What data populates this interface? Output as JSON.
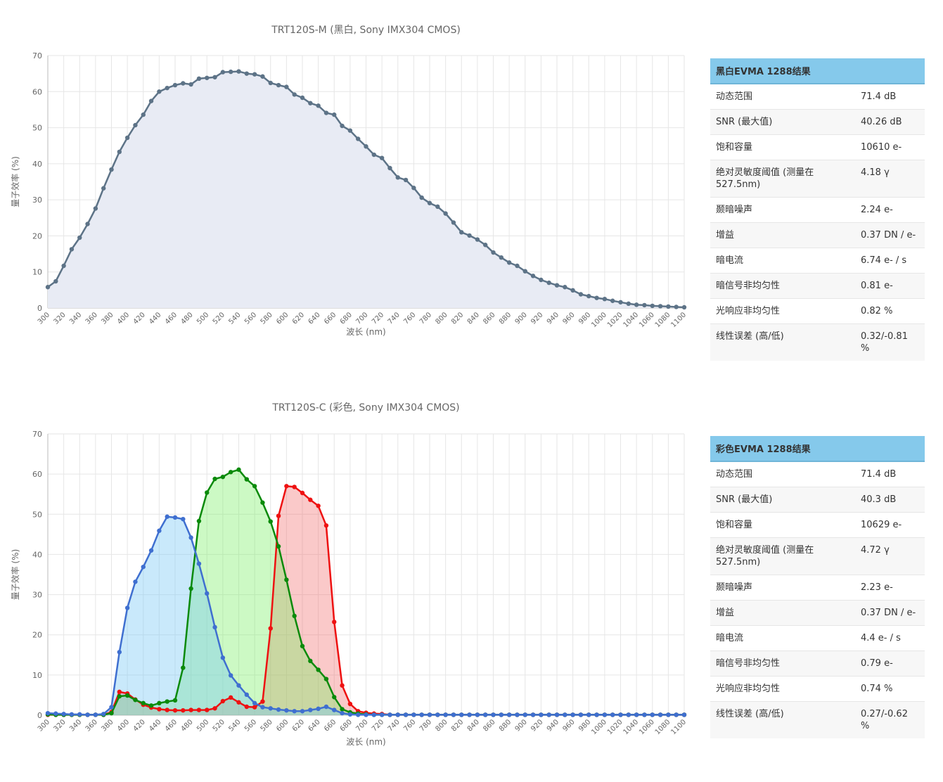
{
  "chart_data": [
    {
      "type": "line",
      "title": "TRT120S-M (黑白, Sony IMX304 CMOS)",
      "x_label": "波长 (nm)",
      "y_label": "量子效率 (%)",
      "x": [
        300,
        310,
        320,
        330,
        340,
        350,
        360,
        370,
        380,
        390,
        400,
        410,
        420,
        430,
        440,
        450,
        460,
        470,
        480,
        490,
        500,
        510,
        520,
        530,
        540,
        550,
        560,
        570,
        580,
        590,
        600,
        610,
        620,
        630,
        640,
        650,
        660,
        670,
        680,
        690,
        700,
        710,
        720,
        730,
        740,
        750,
        760,
        770,
        780,
        790,
        800,
        810,
        820,
        830,
        840,
        850,
        860,
        870,
        880,
        890,
        900,
        910,
        920,
        930,
        940,
        950,
        960,
        970,
        980,
        990,
        1000,
        1010,
        1020,
        1030,
        1040,
        1050,
        1060,
        1070,
        1080,
        1090,
        1100
      ],
      "series": [
        {
          "color": "#5d7387",
          "fill_color": "#e8ebf4",
          "values": [
            5.8,
            7.4,
            11.7,
            16.3,
            19.5,
            23.3,
            27.6,
            33.2,
            38.4,
            43.3,
            47.2,
            50.7,
            53.6,
            57.4,
            60,
            61,
            61.8,
            62.3,
            62,
            63.6,
            63.8,
            64,
            65.4,
            65.5,
            65.6,
            65,
            64.8,
            64.2,
            62.4,
            61.8,
            61.3,
            59.2,
            58.3,
            56.8,
            56.1,
            54.1,
            53.6,
            50.5,
            49.2,
            46.9,
            44.8,
            42.5,
            41.6,
            38.8,
            36.2,
            35.5,
            33.3,
            30.6,
            29.1,
            28.1,
            26.2,
            23.7,
            21,
            20.1,
            19,
            17.5,
            15.4,
            14,
            12.6,
            11.7,
            10.2,
            8.9,
            7.8,
            7,
            6.3,
            5.8,
            4.9,
            3.8,
            3.3,
            2.8,
            2.5,
            2,
            1.6,
            1.2,
            0.9,
            0.8,
            0.6,
            0.5,
            0.4,
            0.3,
            0.2
          ]
        }
      ],
      "xlim": [
        300,
        1100
      ],
      "ylim": [
        0,
        70
      ],
      "xticks": [
        300,
        320,
        340,
        360,
        380,
        400,
        420,
        440,
        460,
        480,
        500,
        520,
        540,
        560,
        580,
        600,
        620,
        640,
        660,
        680,
        700,
        720,
        740,
        760,
        780,
        800,
        820,
        840,
        860,
        880,
        900,
        920,
        940,
        960,
        980,
        1000,
        1020,
        1040,
        1060,
        1080,
        1100
      ],
      "yticks": [
        0,
        10,
        20,
        30,
        40,
        50,
        60,
        70
      ],
      "grid": true
    },
    {
      "type": "line",
      "title": "TRT120S-C (彩色, Sony IMX304 CMOS)",
      "x_label": "波长 (nm)",
      "y_label": "量子效率 (%)",
      "x": [
        300,
        310,
        320,
        330,
        340,
        350,
        360,
        370,
        380,
        390,
        400,
        410,
        420,
        430,
        440,
        450,
        460,
        470,
        480,
        490,
        500,
        510,
        520,
        530,
        540,
        550,
        560,
        570,
        580,
        590,
        600,
        610,
        620,
        630,
        640,
        650,
        660,
        670,
        680,
        690,
        700,
        710,
        720,
        730,
        740,
        750,
        760,
        770,
        780,
        790,
        800,
        810,
        820,
        830,
        840,
        850,
        860,
        870,
        880,
        890,
        900,
        910,
        920,
        930,
        940,
        950,
        960,
        970,
        980,
        990,
        1000,
        1010,
        1020,
        1030,
        1040,
        1050,
        1060,
        1070,
        1080,
        1090,
        1100
      ],
      "series": [
        {
          "color": "#ee1111",
          "fill_color": "rgba(240,100,100,0.35)",
          "values": [
            0.1,
            0.1,
            0.1,
            0.1,
            0.1,
            0.1,
            0.1,
            0.1,
            0.8,
            5.8,
            5.4,
            3.9,
            2.6,
            1.9,
            1.5,
            1.3,
            1.2,
            1.2,
            1.3,
            1.3,
            1.3,
            1.7,
            3.5,
            4.4,
            3.2,
            2.1,
            2,
            3.4,
            21.6,
            49.6,
            57,
            56.8,
            55.3,
            53.6,
            52.1,
            47.2,
            23.2,
            7.4,
            2.8,
            1,
            0.6,
            0.4,
            0.3,
            0.1,
            0.1,
            0.1,
            0.1,
            0.1,
            0.1,
            0.1,
            0.1,
            0.1,
            0.1,
            0.1,
            0.1,
            0.1,
            0.1,
            0.1,
            0.1,
            0.1,
            0.1,
            0.1,
            0.1,
            0.1,
            0.1,
            0.1,
            0.1,
            0.1,
            0.1,
            0.1,
            0.1,
            0.1,
            0.1,
            0.1,
            0.1,
            0.1,
            0.1,
            0.1,
            0.1,
            0.1,
            0.1
          ]
        },
        {
          "color": "#0a8a0a",
          "fill_color": "rgba(120,240,100,0.38)",
          "values": [
            0.2,
            0.1,
            0.1,
            0.1,
            0.1,
            0.1,
            0.1,
            0.1,
            0.5,
            4.7,
            4.9,
            3.8,
            3,
            2.4,
            3,
            3.4,
            3.7,
            11.8,
            31.5,
            48.3,
            55.4,
            58.8,
            59.3,
            60.5,
            61.1,
            58.7,
            57,
            52.9,
            48.2,
            42,
            33.7,
            24.7,
            17.2,
            13.5,
            11.3,
            9,
            4.5,
            1.5,
            0.7,
            0.4,
            0.2,
            0.1,
            0.1,
            0.1,
            0.1,
            0.1,
            0.1,
            0.1,
            0.1,
            0.1,
            0.1,
            0.1,
            0.1,
            0.1,
            0.1,
            0.1,
            0.1,
            0.1,
            0.1,
            0.1,
            0.1,
            0.1,
            0.1,
            0.1,
            0.1,
            0.1,
            0.1,
            0.1,
            0.1,
            0.1,
            0.1,
            0.1,
            0.1,
            0.1,
            0.1,
            0.1,
            0.1,
            0.1,
            0.1,
            0.1,
            0.1
          ]
        },
        {
          "color": "#3f6fd0",
          "fill_color": "rgba(120,200,245,0.4)",
          "values": [
            0.5,
            0.4,
            0.3,
            0.2,
            0.2,
            0.1,
            0.1,
            0.3,
            2,
            15.7,
            26.7,
            33.2,
            36.9,
            41,
            45.9,
            49.4,
            49.2,
            48.8,
            44.2,
            37.7,
            30.3,
            21.9,
            14.3,
            9.9,
            7.4,
            5.1,
            3,
            2,
            1.7,
            1.4,
            1.2,
            1,
            1,
            1.3,
            1.6,
            2.1,
            1.3,
            0.5,
            0.2,
            0.1,
            0.1,
            0.1,
            0.1,
            0.1,
            0.1,
            0.1,
            0.1,
            0.1,
            0.1,
            0.1,
            0.1,
            0.1,
            0.1,
            0.1,
            0.1,
            0.1,
            0.1,
            0.1,
            0.1,
            0.1,
            0.1,
            0.1,
            0.1,
            0.1,
            0.1,
            0.1,
            0.1,
            0.1,
            0.1,
            0.1,
            0.1,
            0.1,
            0.1,
            0.1,
            0.1,
            0.1,
            0.1,
            0.1,
            0.1,
            0.1,
            0.1
          ]
        }
      ],
      "xlim": [
        300,
        1100
      ],
      "ylim": [
        0,
        70
      ],
      "xticks": [
        300,
        320,
        340,
        360,
        380,
        400,
        420,
        440,
        460,
        480,
        500,
        520,
        540,
        560,
        580,
        600,
        620,
        640,
        660,
        680,
        700,
        720,
        740,
        760,
        780,
        800,
        820,
        840,
        860,
        880,
        900,
        920,
        940,
        960,
        980,
        1000,
        1020,
        1040,
        1060,
        1080,
        1100
      ],
      "yticks": [
        0,
        10,
        20,
        30,
        40,
        50,
        60,
        70
      ],
      "grid": true
    }
  ],
  "tables": [
    {
      "title": "黑白EVMA 1288结果",
      "rows": [
        [
          "动态范围",
          "71.4 dB"
        ],
        [
          "SNR (最大值)",
          "40.26 dB"
        ],
        [
          "饱和容量",
          "10610 e-"
        ],
        [
          "绝对灵敏度阈值 (测量在527.5nm)",
          "4.18 γ"
        ],
        [
          "颞暗噪声",
          "2.24 e-"
        ],
        [
          "增益",
          "0.37 DN / e-"
        ],
        [
          "暗电流",
          "6.74 e- / s"
        ],
        [
          "暗信号非均匀性",
          "0.81 e-"
        ],
        [
          "光响应非均匀性",
          "0.82 %"
        ],
        [
          "线性误差 (高/低)",
          "0.32/-0.81 %"
        ]
      ]
    },
    {
      "title": "彩色EVMA 1288结果",
      "rows": [
        [
          "动态范围",
          "71.4 dB"
        ],
        [
          "SNR (最大值)",
          "40.3 dB"
        ],
        [
          "饱和容量",
          "10629 e-"
        ],
        [
          "绝对灵敏度阈值 (测量在527.5nm)",
          "4.72 γ"
        ],
        [
          "颞暗噪声",
          "2.23 e-"
        ],
        [
          "增益",
          "0.37 DN / e-"
        ],
        [
          "暗电流",
          "4.4 e- / s"
        ],
        [
          "暗信号非均匀性",
          "0.79 e-"
        ],
        [
          "光响应非均匀性",
          "0.74 %"
        ],
        [
          "线性误差 (高/低)",
          "0.27/-0.62 %"
        ]
      ]
    }
  ]
}
